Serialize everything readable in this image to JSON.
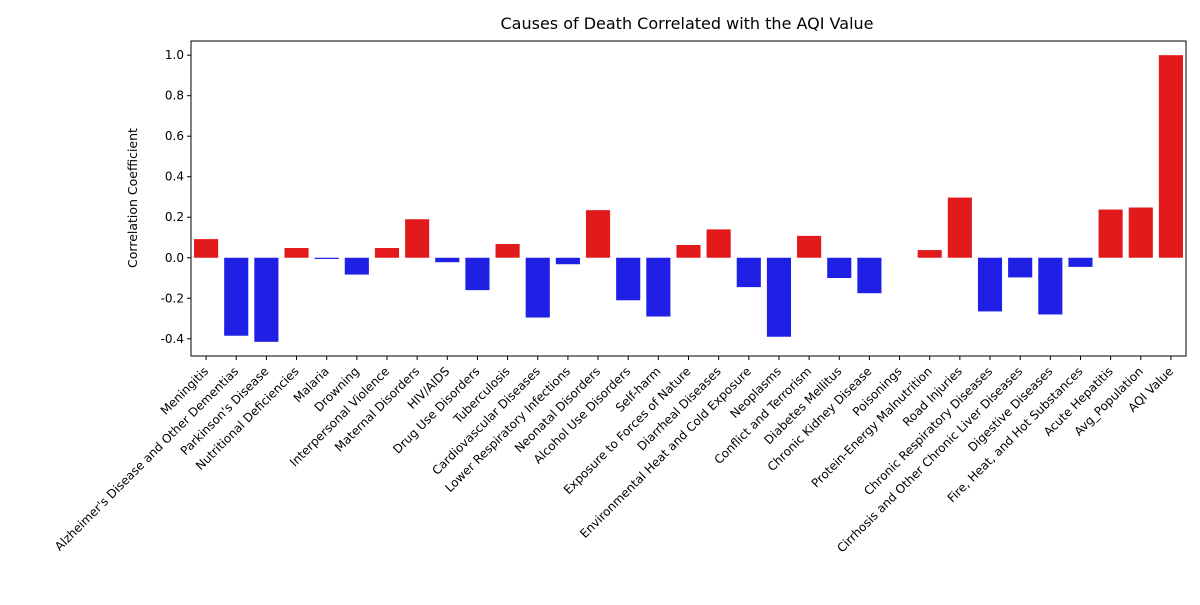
{
  "chart_data": {
    "type": "bar",
    "title": "Causes of Death Correlated with the AQI Value",
    "xlabel": "",
    "ylabel": "Correlation Coefficient",
    "ylim": [
      -0.485,
      1.07
    ],
    "yticks": [
      "-0.4",
      "-0.2",
      "0.0",
      "0.2",
      "0.4",
      "0.6",
      "0.8",
      "1.0"
    ],
    "grid": false,
    "colors": {
      "positive": "#e31a1c",
      "negative": "#1f1fe5"
    },
    "categories": [
      "Meningitis",
      "Alzheimer's Disease and Other Dementias",
      "Parkinson's Disease",
      "Nutritional Deficiencies",
      "Malaria",
      "Drowning",
      "Interpersonal Violence",
      "Maternal Disorders",
      "HIV/AIDS",
      "Drug Use Disorders",
      "Tuberculosis",
      "Cardiovascular Diseases",
      "Lower Respiratory Infections",
      "Neonatal Disorders",
      "Alcohol Use Disorders",
      "Self-harm",
      "Exposure to Forces of Nature",
      "Diarrheal Diseases",
      "Environmental Heat and Cold Exposure",
      "Neoplasms",
      "Conflict and Terrorism",
      "Diabetes Mellitus",
      "Chronic Kidney Disease",
      "Poisonings",
      "Protein-Energy Malnutrition",
      "Road Injuries",
      "Chronic Respiratory Diseases",
      "Cirrhosis and Other Chronic Liver Diseases",
      "Digestive Diseases",
      "Fire, Heat, and Hot Substances",
      "Acute Hepatitis",
      "Avg_Population",
      "AQI Value"
    ],
    "values": [
      0.092,
      -0.385,
      -0.415,
      0.048,
      -0.006,
      -0.083,
      0.048,
      0.19,
      -0.022,
      -0.16,
      0.068,
      -0.295,
      -0.032,
      0.235,
      -0.21,
      -0.29,
      0.063,
      0.14,
      -0.145,
      -0.39,
      0.108,
      -0.1,
      -0.175,
      0.0,
      0.038,
      0.297,
      -0.265,
      -0.097,
      -0.28,
      -0.045,
      0.238,
      0.248,
      1.0
    ]
  }
}
